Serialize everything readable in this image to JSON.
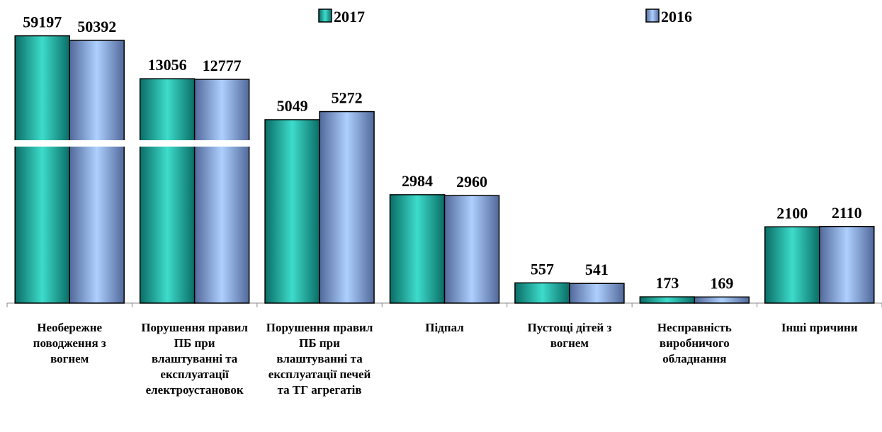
{
  "chart_data": {
    "type": "bar",
    "categories": [
      "Необережне поводження з вогнем",
      "Порушення правил ПБ при влаштуванні та експлуатації електроустановок",
      "Порушення правил ПБ при влаштуванні та експлуатації печей та ТГ агрегатів",
      "Підпал",
      "Пустощі дітей з вогнем",
      "Несправність виробничого обладнання",
      "Інші причини"
    ],
    "series": [
      {
        "name": "2017",
        "color": "#1aa99c",
        "values": [
          59197,
          13056,
          5049,
          2984,
          557,
          173,
          2100
        ]
      },
      {
        "name": "2016",
        "color": "#7fa7e0",
        "values": [
          50392,
          12777,
          5272,
          2960,
          541,
          169,
          2110
        ]
      }
    ],
    "broken_axis": true
  }
}
